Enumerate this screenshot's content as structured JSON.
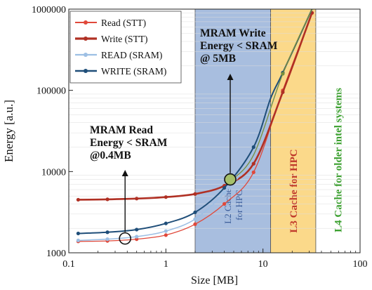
{
  "chart_data": {
    "type": "line",
    "xlabel": "Size [MB]",
    "ylabel": "Energy [a.u.]",
    "x_scale": "log",
    "y_scale": "log",
    "xlim": [
      0.1,
      100
    ],
    "ylim": [
      1000,
      1000000
    ],
    "x_ticks": [
      {
        "value": 0.1,
        "label": "0.1"
      },
      {
        "value": 1,
        "label": "1"
      },
      {
        "value": 10,
        "label": "10"
      },
      {
        "value": 100,
        "label": "100"
      }
    ],
    "y_ticks": [
      {
        "value": 1000,
        "label": "1000"
      },
      {
        "value": 10000,
        "label": "10000"
      },
      {
        "value": 100000,
        "label": "100000"
      },
      {
        "value": 1000000,
        "label": "1000000"
      }
    ],
    "legend_position": "top-left",
    "regions": [
      {
        "label": "L2 Cache for HPC",
        "x_start": 2,
        "x_end": 12,
        "color": "#a8bedf",
        "text_color": "#3b5d9a"
      },
      {
        "label": "L3 Cache for HPC",
        "x_start": 12,
        "x_end": 35,
        "color": "#fbd98a",
        "text_color": "#c0392b"
      },
      {
        "label": "L4 Cache for older intel systems",
        "x_start": 35,
        "x_end": 100,
        "color": "#ffffff",
        "text_color": "#3ba02f"
      }
    ],
    "series": [
      {
        "name": "Read (STT)",
        "color": "#e0483a",
        "stroke_width": 1.3,
        "points": [
          [
            0.125,
            1380
          ],
          [
            0.25,
            1400
          ],
          [
            0.5,
            1470
          ],
          [
            1,
            1650
          ],
          [
            2,
            2250
          ],
          [
            4,
            4000
          ],
          [
            8,
            9800
          ],
          [
            16,
            100000
          ],
          [
            32,
            900000
          ]
        ],
        "markers": [
          [
            0.125,
            1380
          ],
          [
            0.25,
            1400
          ],
          [
            0.5,
            1470
          ],
          [
            1,
            1650
          ],
          [
            2,
            2250
          ],
          [
            4,
            4000
          ],
          [
            8,
            9800
          ],
          [
            16,
            100000
          ],
          [
            32,
            900000
          ]
        ]
      },
      {
        "name": "Write (STT)",
        "color": "#b03024",
        "stroke_width": 2.6,
        "points": [
          [
            0.125,
            4500
          ],
          [
            0.25,
            4550
          ],
          [
            0.5,
            4650
          ],
          [
            1,
            4850
          ],
          [
            2,
            5300
          ],
          [
            4,
            6700
          ],
          [
            8,
            12500
          ],
          [
            16,
            95000
          ],
          [
            32,
            900000
          ]
        ],
        "markers": [
          [
            0.125,
            4500
          ],
          [
            0.25,
            4550
          ],
          [
            0.5,
            4650
          ],
          [
            1,
            4850
          ],
          [
            2,
            5300
          ],
          [
            4,
            6700
          ],
          [
            8,
            12500
          ],
          [
            16,
            95000
          ],
          [
            32,
            900000
          ]
        ]
      },
      {
        "name": "READ (SRAM)",
        "color": "#9dbfe4",
        "stroke_width": 1.6,
        "points": [
          [
            0.125,
            1420
          ],
          [
            0.25,
            1470
          ],
          [
            0.5,
            1580
          ],
          [
            1,
            1850
          ],
          [
            2,
            2600
          ],
          [
            4,
            5500
          ],
          [
            8,
            16500
          ],
          [
            16,
            160000
          ],
          [
            32,
            1000000
          ]
        ],
        "markers": [
          [
            0.125,
            1420
          ],
          [
            0.25,
            1470
          ],
          [
            0.5,
            1580
          ],
          [
            1,
            1850
          ],
          [
            2,
            2600
          ],
          [
            4,
            5500
          ],
          [
            8,
            16500
          ],
          [
            16,
            160000
          ]
        ]
      },
      {
        "name": "WRITE (SRAM)",
        "color": "#1f4e79",
        "stroke_width": 2,
        "points": [
          [
            0.125,
            1730
          ],
          [
            0.25,
            1790
          ],
          [
            0.5,
            1930
          ],
          [
            1,
            2300
          ],
          [
            2,
            3150
          ],
          [
            4,
            6300
          ],
          [
            8,
            20000
          ],
          [
            12,
            80000
          ],
          [
            16,
            165000
          ],
          [
            32,
            1000000
          ]
        ],
        "markers": [
          [
            0.125,
            1730
          ],
          [
            0.25,
            1790
          ],
          [
            0.5,
            1930
          ],
          [
            1,
            2300
          ],
          [
            2,
            3150
          ],
          [
            4,
            6300
          ],
          [
            8,
            20000
          ],
          [
            16,
            165000
          ]
        ]
      },
      {
        "name": "",
        "color": "#7a8f3a",
        "stroke_width": 1.3,
        "points": [
          [
            4.5,
            7500
          ],
          [
            8,
            16000
          ],
          [
            16,
            160000
          ],
          [
            32,
            1000000
          ]
        ],
        "markers": [
          [
            16,
            160000
          ]
        ]
      }
    ],
    "annotations": [
      {
        "text_lines": [
          "MRAM Read",
          "Energy < SRAM",
          "@0.4MB"
        ],
        "target": [
          0.38,
          1500
        ],
        "circle_fill": "none"
      },
      {
        "text_lines": [
          "MRAM Write",
          "Energy < SRAM",
          "@ 5MB"
        ],
        "target": [
          4.6,
          8000
        ],
        "circle_fill": "#a6c06a"
      }
    ]
  }
}
